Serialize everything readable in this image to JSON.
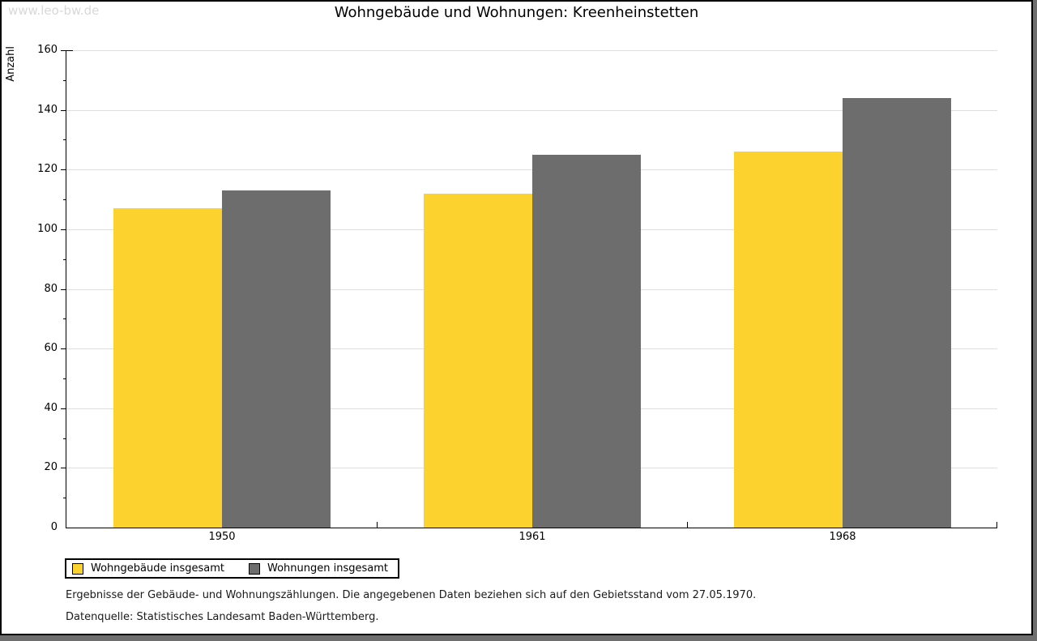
{
  "watermark": "www.leo-bw.de",
  "page": {
    "background": "#FFFFFF",
    "border_color": "#000000",
    "shadow_color": "#6E6E6E"
  },
  "chart_data": {
    "type": "bar",
    "title": "Wohngebäude und Wohnungen: Kreenheinstetten",
    "ylabel": "Anzahl",
    "xlabel": "",
    "categories": [
      "1950",
      "1961",
      "1968"
    ],
    "series": [
      {
        "name": "Wohngebäude insgesamt",
        "color": "#FCD32E",
        "values": [
          107,
          112,
          126
        ]
      },
      {
        "name": "Wohnungen insgesamt",
        "color": "#6D6D6D",
        "values": [
          113,
          125,
          144
        ]
      }
    ],
    "ylim": [
      0,
      160
    ],
    "y_major_step": 20,
    "y_minor_step": 10,
    "grid": "horizontal-major",
    "gridline_color": "#DEDEDE",
    "legend_position": "bottom-left"
  },
  "footnotes": [
    "Ergebnisse der Gebäude- und Wohnungszählungen. Die angegebenen Daten beziehen sich auf den Gebietsstand vom 27.05.1970.",
    "Datenquelle: Statistisches Landesamt Baden-Württemberg."
  ]
}
